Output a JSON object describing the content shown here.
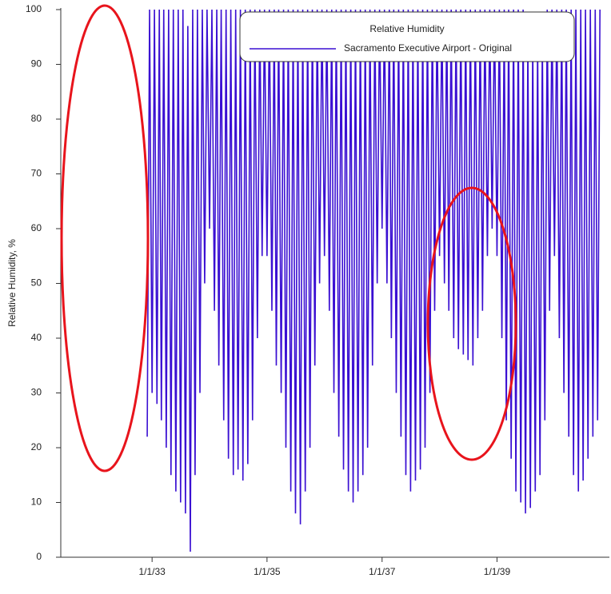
{
  "chart_data": {
    "type": "line",
    "y_label": "Relative Humidity, %",
    "legend_title": "Relative Humidity",
    "legend": "upper right",
    "xlim": [
      "6/1/31",
      "12/15/40"
    ],
    "xticks": [
      "1/1/33",
      "1/1/35",
      "1/1/37",
      "1/1/39"
    ],
    "ylim": [
      0,
      100
    ],
    "yticks": [
      0,
      10,
      20,
      30,
      40,
      50,
      60,
      70,
      80,
      90,
      100
    ],
    "x": [
      "12/1/32",
      "12/16/32",
      "1/1/33",
      "1/16/33",
      "2/1/33",
      "2/16/33",
      "3/1/33",
      "3/16/33",
      "4/1/33",
      "4/16/33",
      "5/1/33",
      "5/16/33",
      "6/1/33",
      "6/16/33",
      "7/1/33",
      "7/16/33",
      "8/1/33",
      "8/16/33",
      "9/1/33",
      "9/16/33",
      "10/1/33",
      "10/16/33",
      "11/1/33",
      "11/16/33",
      "12/1/33",
      "12/16/33",
      "1/1/34",
      "1/16/34",
      "2/1/34",
      "2/16/34",
      "3/1/34",
      "3/16/34",
      "4/1/34",
      "4/16/34",
      "5/1/34",
      "5/16/34",
      "6/1/34",
      "6/16/34",
      "7/1/34",
      "7/16/34",
      "8/1/34",
      "8/16/34",
      "9/1/34",
      "9/16/34",
      "10/1/34",
      "10/16/34",
      "11/1/34",
      "11/16/34",
      "12/1/34",
      "12/16/34",
      "1/1/35",
      "1/16/35",
      "2/1/35",
      "2/16/35",
      "3/1/35",
      "3/16/35",
      "4/1/35",
      "4/16/35",
      "5/1/35",
      "5/16/35",
      "6/1/35",
      "6/16/35",
      "7/1/35",
      "7/16/35",
      "8/1/35",
      "8/16/35",
      "9/1/35",
      "9/16/35",
      "10/1/35",
      "10/16/35",
      "11/1/35",
      "11/16/35",
      "12/1/35",
      "12/16/35",
      "1/1/36",
      "1/16/36",
      "2/1/36",
      "2/16/36",
      "3/1/36",
      "3/16/36",
      "4/1/36",
      "4/16/36",
      "5/1/36",
      "5/16/36",
      "6/1/36",
      "6/16/36",
      "7/1/36",
      "7/16/36",
      "8/1/36",
      "8/16/36",
      "9/1/36",
      "9/16/36",
      "10/1/36",
      "10/16/36",
      "11/1/36",
      "11/16/36",
      "12/1/36",
      "12/16/36",
      "1/1/37",
      "1/16/37",
      "2/1/37",
      "2/16/37",
      "3/1/37",
      "3/16/37",
      "4/1/37",
      "4/16/37",
      "5/1/37",
      "5/16/37",
      "6/1/37",
      "6/16/37",
      "7/1/37",
      "7/16/37",
      "8/1/37",
      "8/16/37",
      "9/1/37",
      "9/16/37",
      "10/1/37",
      "10/16/37",
      "11/1/37",
      "11/16/37",
      "12/1/37",
      "12/16/37",
      "1/1/38",
      "1/16/38",
      "2/1/38",
      "2/16/38",
      "3/1/38",
      "3/16/38",
      "4/1/38",
      "4/16/38",
      "5/1/38",
      "5/16/38",
      "6/1/38",
      "6/16/38",
      "7/1/38",
      "7/16/38",
      "8/1/38",
      "8/16/38",
      "9/1/38",
      "9/16/38",
      "10/1/38",
      "10/16/38",
      "11/1/38",
      "11/16/38",
      "12/1/38",
      "12/16/38",
      "1/1/39",
      "1/16/39",
      "2/1/39",
      "2/16/39",
      "3/1/39",
      "3/16/39",
      "4/1/39",
      "4/16/39",
      "5/1/39",
      "5/16/39",
      "6/1/39",
      "6/16/39",
      "7/1/39",
      "7/16/39",
      "8/1/39",
      "8/16/39",
      "9/1/39",
      "9/16/39",
      "10/1/39",
      "10/16/39",
      "11/1/39",
      "11/16/39",
      "12/1/39",
      "12/16/39",
      "1/1/40",
      "1/16/40",
      "2/1/40",
      "2/16/40",
      "3/1/40",
      "3/16/40",
      "4/1/40",
      "4/16/40",
      "5/1/40",
      "5/16/40",
      "6/1/40",
      "6/16/40",
      "7/1/40",
      "7/16/40",
      "8/1/40",
      "8/16/40",
      "9/1/40",
      "9/16/40",
      "10/1/40",
      "10/16/40"
    ],
    "series": [
      {
        "name": "Sacramento Executive Airport - Original",
        "color": "#3a0fd2",
        "values": [
          22,
          100,
          30,
          100,
          28,
          100,
          25,
          100,
          20,
          100,
          15,
          100,
          12,
          100,
          10,
          100,
          8,
          97,
          1,
          100,
          15,
          100,
          30,
          100,
          50,
          100,
          60,
          100,
          45,
          100,
          35,
          100,
          25,
          100,
          18,
          100,
          15,
          100,
          16,
          100,
          14,
          100,
          17,
          100,
          25,
          100,
          40,
          100,
          55,
          100,
          55,
          100,
          45,
          100,
          35,
          100,
          30,
          100,
          20,
          100,
          12,
          100,
          8,
          100,
          6,
          100,
          12,
          100,
          20,
          100,
          35,
          100,
          50,
          100,
          55,
          100,
          45,
          100,
          30,
          100,
          22,
          100,
          16,
          100,
          12,
          100,
          10,
          100,
          12,
          100,
          15,
          100,
          20,
          100,
          35,
          100,
          50,
          100,
          60,
          100,
          50,
          100,
          40,
          100,
          30,
          100,
          22,
          100,
          15,
          100,
          12,
          100,
          14,
          100,
          16,
          100,
          20,
          100,
          30,
          100,
          45,
          100,
          55,
          100,
          50,
          100,
          45,
          100,
          40,
          100,
          38,
          100,
          37,
          100,
          36,
          100,
          35,
          100,
          40,
          100,
          45,
          100,
          55,
          100,
          60,
          100,
          55,
          100,
          40,
          100,
          25,
          100,
          18,
          100,
          12,
          100,
          10,
          100,
          8,
          95,
          9,
          95,
          12,
          95,
          15,
          95,
          25,
          100,
          45,
          100,
          55,
          100,
          40,
          100,
          30,
          100,
          22,
          100,
          15,
          100,
          12,
          100,
          14,
          100,
          18,
          100,
          22,
          100,
          25,
          100
        ]
      }
    ]
  }
}
